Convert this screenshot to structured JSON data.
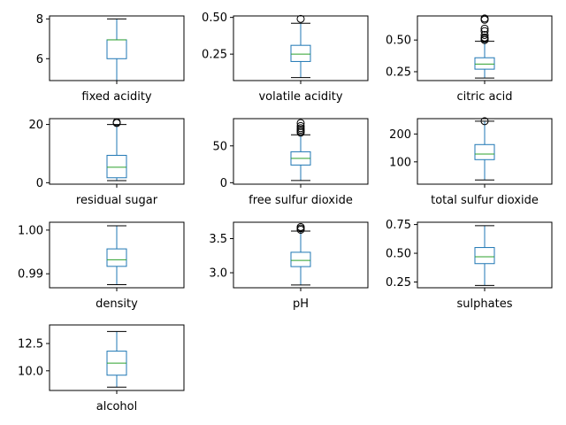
{
  "colors": {
    "box": "#1f77b4",
    "median": "#2ca02c",
    "axis": "#000000"
  },
  "chart_data": [
    {
      "type": "box",
      "category": "fixed acidity",
      "ylim": [
        4.9,
        8.15
      ],
      "yticks": [
        6,
        8
      ],
      "ytick_labels": [
        "6",
        "8"
      ],
      "whisker_low": 4.9,
      "q1": 6.0,
      "median": 6.95,
      "q3": 6.95,
      "whisker_high": 8.0,
      "outliers": []
    },
    {
      "type": "box",
      "category": "volatile acidity",
      "ylim": [
        0.07,
        0.51
      ],
      "yticks": [
        0.25,
        0.5
      ],
      "ytick_labels": [
        "0.25",
        "0.50"
      ],
      "whisker_low": 0.09,
      "q1": 0.2,
      "median": 0.25,
      "q3": 0.31,
      "whisker_high": 0.46,
      "outliers": [
        0.49
      ]
    },
    {
      "type": "box",
      "category": "citric acid",
      "ylim": [
        0.18,
        0.69
      ],
      "yticks": [
        0.25,
        0.5
      ],
      "ytick_labels": [
        "0.25",
        "0.50"
      ],
      "whisker_low": 0.2,
      "q1": 0.27,
      "median": 0.31,
      "q3": 0.36,
      "whisker_high": 0.49,
      "outliers": [
        0.5,
        0.51,
        0.52,
        0.54,
        0.57,
        0.59,
        0.66,
        0.67
      ]
    },
    {
      "type": "box",
      "category": "residual sugar",
      "ylim": [
        -0.5,
        22
      ],
      "yticks": [
        0,
        20
      ],
      "ytick_labels": [
        "0",
        "20"
      ],
      "whisker_low": 0.7,
      "q1": 1.7,
      "median": 5.3,
      "q3": 9.4,
      "whisker_high": 20.0,
      "outliers": [
        20.5,
        20.8
      ]
    },
    {
      "type": "box",
      "category": "free sulfur dioxide",
      "ylim": [
        -2,
        87
      ],
      "yticks": [
        0,
        50
      ],
      "ytick_labels": [
        "0",
        "50"
      ],
      "whisker_low": 3.0,
      "q1": 24.0,
      "median": 33.0,
      "q3": 42.0,
      "whisker_high": 65.0,
      "outliers": [
        68,
        70,
        72,
        74,
        77,
        81
      ]
    },
    {
      "type": "box",
      "category": "total sulfur dioxide",
      "ylim": [
        20,
        255
      ],
      "yticks": [
        100,
        200
      ],
      "ytick_labels": [
        "100",
        "200"
      ],
      "whisker_low": 35.0,
      "q1": 108.0,
      "median": 128.0,
      "q3": 162.0,
      "whisker_high": 246.0,
      "outliers": [
        246
      ]
    },
    {
      "type": "box",
      "category": "density",
      "ylim": [
        0.9868,
        1.0018
      ],
      "yticks": [
        0.99,
        1.0
      ],
      "ytick_labels": [
        "0.99",
        "1.00"
      ],
      "whisker_low": 0.9875,
      "q1": 0.9917,
      "median": 0.9932,
      "q3": 0.9957,
      "whisker_high": 1.001,
      "outliers": []
    },
    {
      "type": "box",
      "category": "pH",
      "ylim": [
        2.78,
        3.74
      ],
      "yticks": [
        3.0,
        3.5
      ],
      "ytick_labels": [
        "3.0",
        "3.5"
      ],
      "whisker_low": 2.82,
      "q1": 3.09,
      "median": 3.18,
      "q3": 3.3,
      "whisker_high": 3.61,
      "outliers": [
        3.63,
        3.65,
        3.67
      ]
    },
    {
      "type": "box",
      "category": "sulphates",
      "ylim": [
        0.2,
        0.77
      ],
      "yticks": [
        0.25,
        0.5,
        0.75
      ],
      "ytick_labels": [
        "0.25",
        "0.50",
        "0.75"
      ],
      "whisker_low": 0.22,
      "q1": 0.41,
      "median": 0.47,
      "q3": 0.55,
      "whisker_high": 0.74,
      "outliers": []
    },
    {
      "type": "box",
      "category": "alcohol",
      "ylim": [
        8.2,
        14.2
      ],
      "yticks": [
        10.0,
        12.5
      ],
      "ytick_labels": [
        "10.0",
        "12.5"
      ],
      "whisker_low": 8.5,
      "q1": 9.6,
      "median": 10.7,
      "q3": 11.8,
      "whisker_high": 13.6,
      "outliers": []
    }
  ]
}
